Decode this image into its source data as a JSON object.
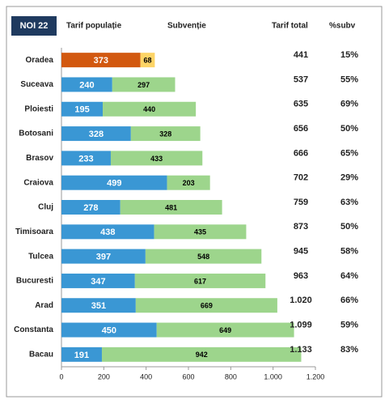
{
  "chart_data": {
    "type": "stacked-bar-horizontal",
    "badge": "NOI 22",
    "categories": [
      "Oradea",
      "Suceava",
      "Ploiesti",
      "Botosani",
      "Brasov",
      "Craiova",
      "Cluj",
      "Timisoara",
      "Tulcea",
      "Bucuresti",
      "Arad",
      "Constanta",
      "Bacau"
    ],
    "series": [
      {
        "name": "Tarif populație",
        "color": "#3a97d4",
        "highlight_color": "#d2580f",
        "label_color": "#ffffff",
        "values": [
          373,
          240,
          195,
          328,
          233,
          499,
          278,
          438,
          397,
          347,
          351,
          450,
          191
        ]
      },
      {
        "name": "Subvenție",
        "color": "#9dd58c",
        "highlight_color": "#fdd466",
        "label_color": "#000000",
        "values": [
          68,
          297,
          440,
          328,
          433,
          203,
          481,
          435,
          548,
          617,
          669,
          649,
          942
        ]
      }
    ],
    "highlight_index": 0,
    "totals": {
      "name": "Tarif total",
      "values": [
        441,
        537,
        635,
        656,
        666,
        702,
        759,
        873,
        945,
        963,
        1020,
        1099,
        1133
      ],
      "value_labels": [
        "441",
        "537",
        "635",
        "656",
        "666",
        "702",
        "759",
        "873",
        "945",
        "963",
        "1.020",
        "1.099",
        "1.133"
      ]
    },
    "percent": {
      "name": "%subv",
      "values": [
        15,
        55,
        69,
        50,
        65,
        29,
        63,
        50,
        58,
        64,
        66,
        59,
        83
      ],
      "value_labels": [
        "15%",
        "55%",
        "69%",
        "50%",
        "65%",
        "29%",
        "63%",
        "50%",
        "58%",
        "64%",
        "66%",
        "59%",
        "83%"
      ]
    },
    "xlim": [
      0,
      1200
    ],
    "xticks": [
      0,
      200,
      400,
      600,
      800,
      {
        "value": 1000,
        "label": "1.000"
      },
      {
        "value": 1200,
        "label": "1.200"
      }
    ]
  }
}
